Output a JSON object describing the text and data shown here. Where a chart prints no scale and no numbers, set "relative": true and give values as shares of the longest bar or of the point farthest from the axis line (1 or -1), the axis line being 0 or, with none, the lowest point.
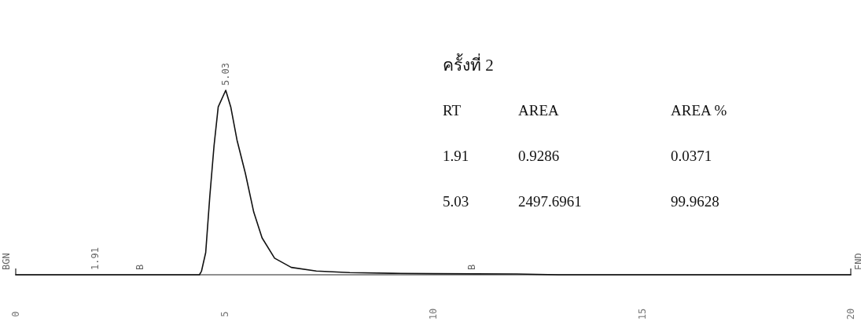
{
  "chart_data": {
    "type": "line",
    "title": "ครั้งที่ 2",
    "relative": true,
    "x": [
      0,
      1,
      2,
      3,
      4,
      4.4,
      4.45,
      4.55,
      4.65,
      4.75,
      4.85,
      5.03,
      5.15,
      5.3,
      5.5,
      5.7,
      5.9,
      6.2,
      6.6,
      7.2,
      8,
      9,
      10,
      11,
      12,
      13,
      14,
      16,
      18,
      20
    ],
    "series": [
      {
        "color": "#111111",
        "values": [
          0,
          0,
          0,
          0,
          0,
          0,
          0.02,
          0.12,
          0.43,
          0.7,
          0.91,
          1,
          0.91,
          0.73,
          0.55,
          0.34,
          0.2,
          0.09,
          0.04,
          0.02,
          0.012,
          0.008,
          0.006,
          0.005,
          0.004,
          0,
          0,
          0,
          0,
          0
        ]
      }
    ],
    "xlim": [
      0,
      20
    ],
    "xticks": [
      0,
      5,
      10,
      15,
      20
    ],
    "grid": false,
    "annotations": [
      "RT",
      "AREA",
      "AREA %",
      "1.91",
      "0.9286",
      "0.0371",
      "5.03",
      "2497.6961",
      "99.9628",
      {
        "text": "BGN",
        "x": 0,
        "y": 0
      },
      {
        "text": "1.91",
        "x": 1.91,
        "y": 0
      },
      {
        "text": "B",
        "x": 2.98,
        "y": 0
      },
      {
        "text": "5.03",
        "x": 5.03,
        "y": 1
      },
      {
        "text": "B",
        "x": 10.92,
        "y": 0
      },
      {
        "text": "END",
        "x": 20,
        "y": 0
      }
    ]
  }
}
